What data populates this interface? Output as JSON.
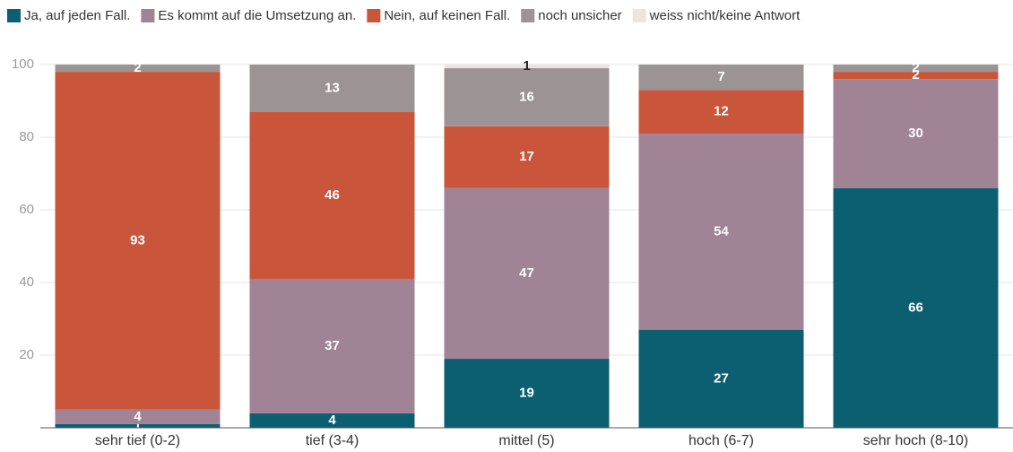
{
  "chart_data": {
    "type": "stacked_bar",
    "categories": [
      "sehr tief (0-2)",
      "tief (3-4)",
      "mittel (5)",
      "hoch (6-7)",
      "sehr hoch (8-10)"
    ],
    "series": [
      {
        "name": "Ja, auf jeden Fall.",
        "color": "#0b5f70",
        "values": [
          1,
          4,
          19,
          27,
          66
        ]
      },
      {
        "name": "Es kommt auf die Umsetzung an.",
        "color": "#a18396",
        "values": [
          4,
          37,
          47,
          54,
          30
        ]
      },
      {
        "name": "Nein, auf keinen Fall.",
        "color": "#c9553b",
        "values": [
          93,
          46,
          17,
          12,
          2
        ]
      },
      {
        "name": "noch unsicher",
        "color": "#9c9494",
        "values": [
          2,
          13,
          16,
          7,
          2
        ]
      },
      {
        "name": "weiss nicht/keine Antwort",
        "color": "#ebe5e0",
        "values": [
          null,
          null,
          1,
          null,
          null
        ]
      }
    ],
    "ylim": [
      0,
      100
    ],
    "yticks": [
      20,
      40,
      60,
      80,
      100
    ],
    "grid": true,
    "legend": "top"
  }
}
